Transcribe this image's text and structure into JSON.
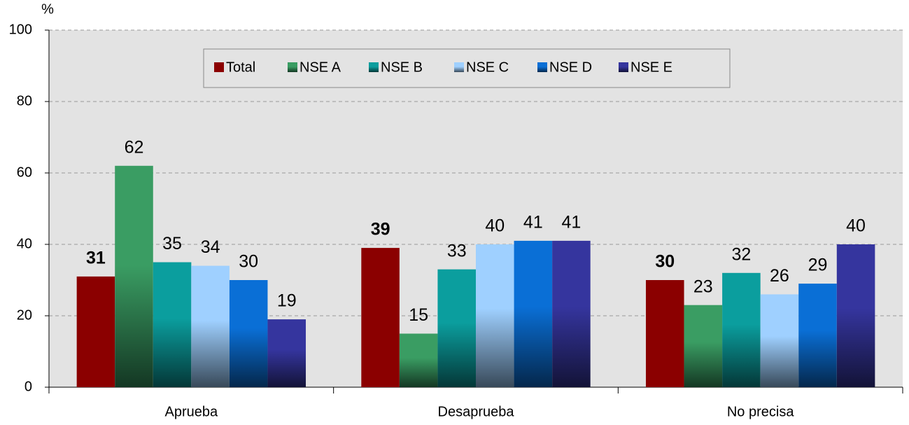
{
  "chart_data": {
    "type": "bar",
    "y_label": "%",
    "categories": [
      "Aprueba",
      "Desaprueba",
      "No precisa"
    ],
    "series": [
      {
        "name": "Total",
        "color": "#8b0000",
        "values": [
          31,
          39,
          30
        ]
      },
      {
        "name": "NSE A",
        "color": "#3a9d63",
        "values": [
          62,
          15,
          23
        ]
      },
      {
        "name": "NSE B",
        "color": "#0b9e9e",
        "values": [
          35,
          33,
          32
        ]
      },
      {
        "name": "NSE C",
        "color": "#9fd0ff",
        "values": [
          34,
          40,
          26
        ]
      },
      {
        "name": "NSE D",
        "color": "#0a6fd6",
        "values": [
          30,
          41,
          29
        ]
      },
      {
        "name": "NSE E",
        "color": "#35359e",
        "values": [
          19,
          41,
          40
        ]
      }
    ],
    "ylim": [
      0,
      100
    ],
    "yticks": [
      0,
      20,
      40,
      60,
      80,
      100
    ],
    "grid": true,
    "legend": "top"
  }
}
